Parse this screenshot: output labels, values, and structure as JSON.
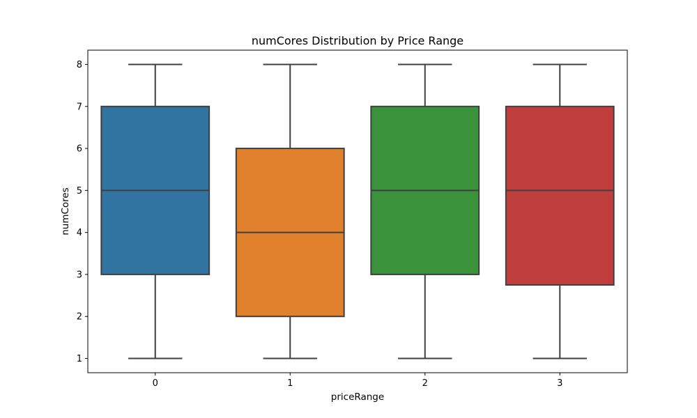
{
  "chart_data": {
    "type": "box",
    "title": "numCores Distribution by Price Range",
    "xlabel": "priceRange",
    "ylabel": "numCores",
    "categories": [
      "0",
      "1",
      "2",
      "3"
    ],
    "yticks": [
      "1",
      "2",
      "3",
      "4",
      "5",
      "6",
      "7",
      "8"
    ],
    "ylim": [
      0.66,
      8.34
    ],
    "grid": false,
    "boxes": [
      {
        "category": "0",
        "whisker_low": 1,
        "q1": 3,
        "median": 5,
        "q3": 7,
        "whisker_high": 8,
        "color": "#3274a1"
      },
      {
        "category": "1",
        "whisker_low": 1,
        "q1": 2,
        "median": 4,
        "q3": 6,
        "whisker_high": 8,
        "color": "#e1812c"
      },
      {
        "category": "2",
        "whisker_low": 1,
        "q1": 3,
        "median": 5,
        "q3": 7,
        "whisker_high": 8,
        "color": "#3a923a"
      },
      {
        "category": "3",
        "whisker_low": 1,
        "q1": 2.75,
        "median": 5,
        "q3": 7,
        "whisker_high": 8,
        "color": "#c03d3e"
      }
    ],
    "line_color": "#3f3f3f"
  }
}
